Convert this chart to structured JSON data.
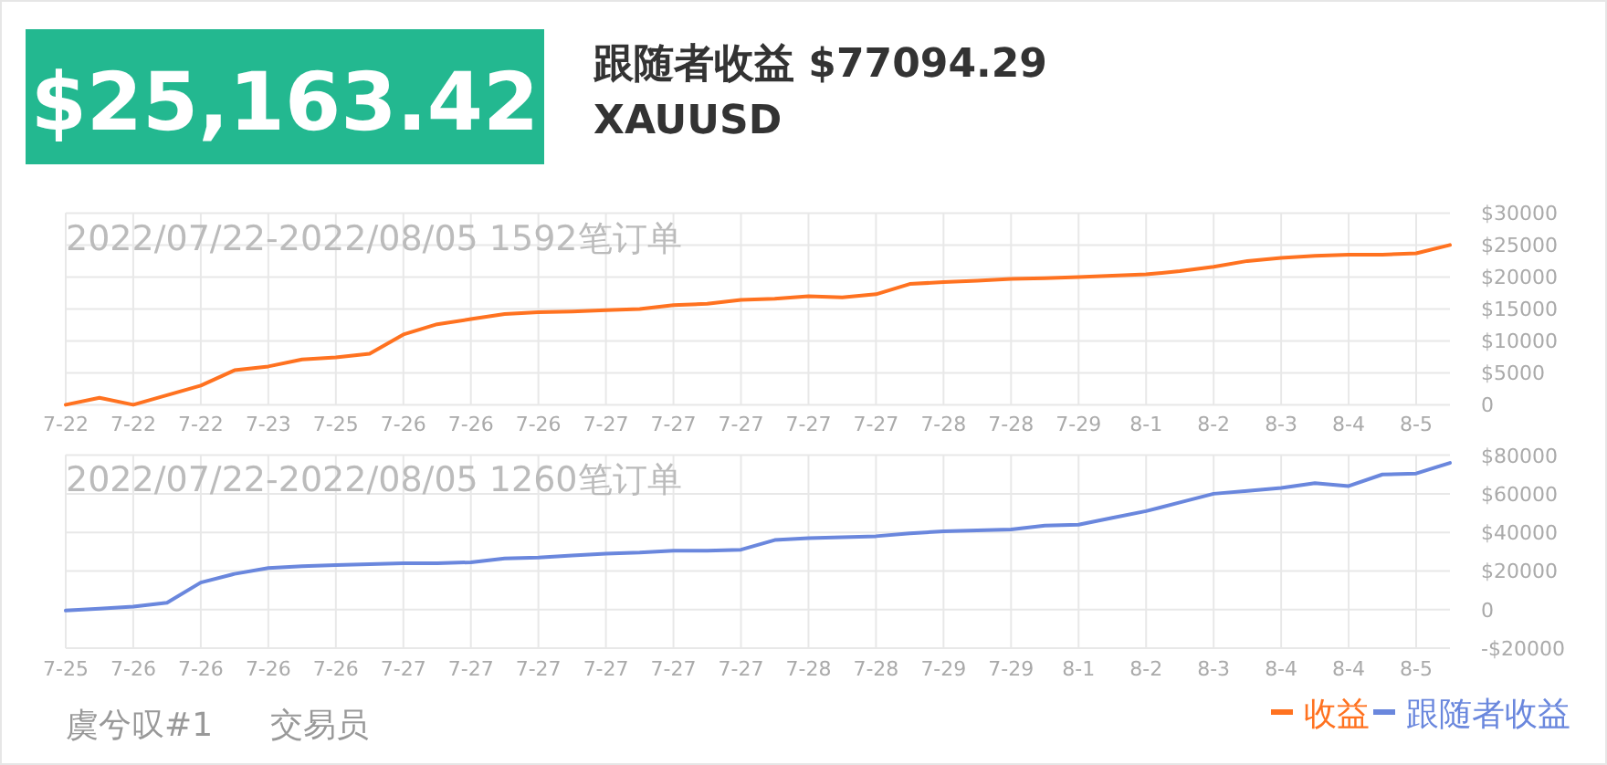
{
  "chart_data": [
    {
      "type": "line",
      "title": "2022/07/22-2022/08/05 1592笔订单",
      "annotations": [
        "$25,163.42",
        "跟随者收益 $77094.29",
        "XAUUSD"
      ],
      "categories": [
        "7-22",
        null,
        "7-22",
        null,
        "7-22",
        null,
        "7-23",
        null,
        "7-25",
        null,
        "7-26",
        null,
        "7-26",
        null,
        "7-26",
        null,
        "7-27",
        null,
        "7-27",
        null,
        "7-27",
        null,
        "7-27",
        null,
        "7-27",
        null,
        "7-28",
        null,
        "7-28",
        null,
        "7-29",
        null,
        "8-1",
        null,
        "8-2",
        null,
        "8-3",
        null,
        "8-4",
        null,
        "8-5",
        null
      ],
      "ylim": [
        0,
        30000
      ],
      "yticks": [
        0,
        {
          "value": 5000,
          "label": "$5000"
        },
        {
          "value": 10000,
          "label": "$10000"
        },
        {
          "value": 15000,
          "label": "$15000"
        },
        {
          "value": 20000,
          "label": "$20000"
        },
        {
          "value": 25000,
          "label": "$25000"
        },
        {
          "value": 30000,
          "label": "$30000"
        }
      ],
      "grid": true,
      "legend": "bottom right",
      "series": [
        {
          "name": "收益",
          "color": "#ff7220",
          "values": [
            0,
            1100,
            0,
            1500,
            3000,
            5400,
            6000,
            7100,
            7400,
            8000,
            11000,
            12600,
            13400,
            14200,
            14500,
            14600,
            14800,
            15000,
            15600,
            15800,
            16400,
            16600,
            17000,
            16800,
            17300,
            18900,
            19200,
            19400,
            19700,
            19800,
            20000,
            20200,
            20400,
            20900,
            21600,
            22500,
            23000,
            23300,
            23500,
            23500,
            23700,
            25000
          ]
        }
      ]
    },
    {
      "type": "line",
      "title": "2022/07/22-2022/08/05 1260笔订单",
      "annotations": [
        "虞兮叹#1",
        "交易员"
      ],
      "categories": [
        "7-25",
        null,
        "7-26",
        null,
        "7-26",
        null,
        "7-26",
        null,
        "7-26",
        null,
        "7-27",
        null,
        "7-27",
        null,
        "7-27",
        null,
        "7-27",
        null,
        "7-27",
        null,
        "7-27",
        null,
        "7-28",
        null,
        "7-28",
        null,
        "7-29",
        null,
        "7-29",
        null,
        "8-1",
        null,
        "8-2",
        null,
        "8-3",
        null,
        "8-4",
        null,
        "8-4",
        null,
        "8-5",
        null
      ],
      "ylim": [
        -20000,
        80000
      ],
      "yticks": [
        {
          "value": -20000,
          "label": "-$20000"
        },
        0,
        {
          "value": 20000,
          "label": "$20000"
        },
        {
          "value": 40000,
          "label": "$40000"
        },
        {
          "value": 60000,
          "label": "$60000"
        },
        {
          "value": 80000,
          "label": "$80000"
        }
      ],
      "grid": true,
      "legend": "bottom right",
      "series": [
        {
          "name": "跟随者收益",
          "color": "#6a87dd",
          "values": [
            -500,
            500,
            1500,
            3500,
            14000,
            18500,
            21500,
            22500,
            23000,
            23500,
            24000,
            24000,
            24500,
            26500,
            27000,
            28000,
            29000,
            29500,
            30500,
            30500,
            31000,
            36000,
            37000,
            37500,
            38000,
            39500,
            40500,
            41000,
            41500,
            43500,
            44000,
            47500,
            51000,
            55500,
            60000,
            61500,
            63000,
            65500,
            64000,
            70000,
            70500,
            76000
          ]
        }
      ]
    }
  ]
}
